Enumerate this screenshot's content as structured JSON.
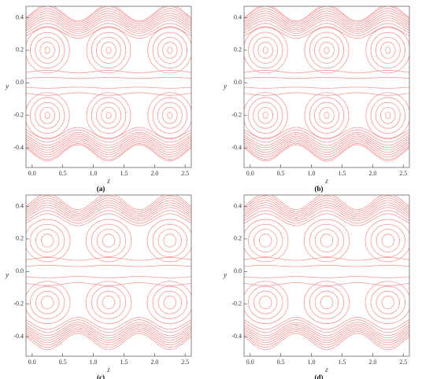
{
  "chart_data": [
    {
      "type": "contour",
      "caption": "(a)",
      "xlabel": "z",
      "ylabel": "y",
      "color": "#f29a9a",
      "xlim": [
        -0.1,
        2.6
      ],
      "ylim": [
        -0.52,
        0.47
      ],
      "xticks": [
        {
          "value": 0,
          "label": "0.0"
        },
        0.5,
        {
          "value": 1,
          "label": "1.0"
        },
        1.5,
        {
          "value": 2,
          "label": "2.0"
        },
        2.5
      ],
      "yticks": [
        -0.4,
        -0.2,
        {
          "value": 0,
          "label": "0.0"
        },
        0.2,
        0.4
      ],
      "wall": {
        "mean": 0.43,
        "amplitude": 0.05,
        "crest": 0.25,
        "wavelength": 1
      },
      "open_levels": [
        0.07,
        0.16,
        0.72,
        0.76,
        0.8,
        0.83,
        0.86,
        0.89,
        0.92,
        0.95,
        0.98,
        1.0
      ],
      "bolus_y": 0.2,
      "bolus_rx": [
        0.04,
        0.12,
        0.2,
        0.28,
        0.36
      ],
      "bolus_ry": [
        0.02,
        0.05,
        0.08,
        0.11,
        0.14
      ]
    },
    {
      "type": "contour",
      "caption": "(b)",
      "xlabel": "z",
      "ylabel": "y",
      "color": "#f29a9a",
      "xlim": [
        -0.1,
        2.6
      ],
      "ylim": [
        -0.52,
        0.47
      ],
      "xticks": [
        {
          "value": 0,
          "label": "0.0"
        },
        0.5,
        {
          "value": 1,
          "label": "1.0"
        },
        1.5,
        {
          "value": 2,
          "label": "2.0"
        },
        2.5
      ],
      "yticks": [
        -0.4,
        -0.2,
        {
          "value": 0,
          "label": "0.0"
        },
        0.2,
        0.4
      ],
      "wall": {
        "mean": 0.43,
        "amplitude": 0.05,
        "crest": 0.25,
        "wavelength": 1
      },
      "open_levels": [
        0.07,
        0.16,
        0.72,
        0.76,
        0.8,
        0.83,
        0.86,
        0.89,
        0.92,
        0.95,
        0.98,
        1.0
      ],
      "bolus_y": 0.2,
      "bolus_rx": [
        0.04,
        0.12,
        0.2,
        0.28,
        0.36
      ],
      "bolus_ry": [
        0.02,
        0.05,
        0.08,
        0.11,
        0.14
      ]
    },
    {
      "type": "contour",
      "caption": "(c)",
      "xlabel": "z",
      "ylabel": "y",
      "color": "#f29a9a",
      "xlim": [
        -0.1,
        2.6
      ],
      "ylim": [
        -0.52,
        0.47
      ],
      "xticks": [
        {
          "value": 0,
          "label": "0.0"
        },
        0.5,
        {
          "value": 1,
          "label": "1.0"
        },
        1.5,
        {
          "value": 2,
          "label": "2.0"
        },
        2.5
      ],
      "yticks": [
        -0.4,
        -0.2,
        {
          "value": 0,
          "label": "0.0"
        },
        0.2,
        0.4
      ],
      "wall": {
        "mean": 0.43,
        "amplitude": 0.05,
        "crest": 0.25,
        "wavelength": 1
      },
      "open_levels": [
        0.08,
        0.18,
        0.74,
        0.78,
        0.82,
        0.85,
        0.88,
        0.91,
        0.94,
        0.97,
        1.0
      ],
      "bolus_y": 0.19,
      "bolus_rx": [
        0.1,
        0.19,
        0.28,
        0.37
      ],
      "bolus_ry": [
        0.04,
        0.07,
        0.1,
        0.13
      ]
    },
    {
      "type": "contour",
      "caption": "(d)",
      "xlabel": "z",
      "ylabel": "y",
      "color": "#f29a9a",
      "xlim": [
        -0.1,
        2.6
      ],
      "ylim": [
        -0.52,
        0.47
      ],
      "xticks": [
        {
          "value": 0,
          "label": "0.0"
        },
        0.5,
        {
          "value": 1,
          "label": "1.0"
        },
        1.5,
        {
          "value": 2,
          "label": "2.0"
        },
        2.5
      ],
      "yticks": [
        -0.4,
        -0.2,
        {
          "value": 0,
          "label": "0.0"
        },
        0.2,
        0.4
      ],
      "wall": {
        "mean": 0.43,
        "amplitude": 0.05,
        "crest": 0.25,
        "wavelength": 1
      },
      "open_levels": [
        0.08,
        0.18,
        0.74,
        0.78,
        0.82,
        0.85,
        0.88,
        0.91,
        0.94,
        0.97,
        1.0
      ],
      "bolus_y": 0.19,
      "bolus_rx": [
        0.1,
        0.19,
        0.28,
        0.37
      ],
      "bolus_ry": [
        0.04,
        0.07,
        0.1,
        0.13
      ]
    }
  ]
}
